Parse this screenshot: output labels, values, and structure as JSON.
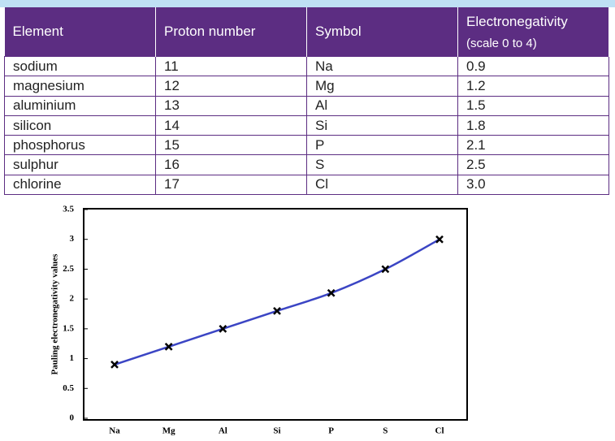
{
  "table": {
    "header": [
      "Element",
      "Proton number",
      "Symbol",
      "Electronegativity"
    ],
    "header_sub": "(scale 0 to 4)",
    "rows": [
      [
        "sodium",
        "11",
        "Na",
        "0.9"
      ],
      [
        "magnesium",
        "12",
        "Mg",
        "1.2"
      ],
      [
        "aluminium",
        "13",
        "Al",
        "1.5"
      ],
      [
        "silicon",
        "14",
        "Si",
        "1.8"
      ],
      [
        "phosphorus",
        "15",
        "P",
        "2.1"
      ],
      [
        "sulphur",
        "16",
        "S",
        "2.5"
      ],
      [
        "chlorine",
        "17",
        "Cl",
        "3.0"
      ]
    ]
  },
  "chart_data": {
    "type": "line",
    "y_label": "Pauling electronegativity values",
    "categories": [
      "Na",
      "Mg",
      "Al",
      "Si",
      "P",
      "S",
      "Cl"
    ],
    "series": [
      {
        "name": null,
        "color": "#3b45c4",
        "values": [
          0.9,
          1.2,
          1.5,
          1.8,
          2.1,
          2.5,
          3.0
        ]
      }
    ],
    "ylim": [
      0,
      3.5
    ],
    "yticks": [
      0,
      0.5,
      1,
      1.5,
      2,
      2.5,
      3,
      3.5
    ],
    "grid": false
  }
}
